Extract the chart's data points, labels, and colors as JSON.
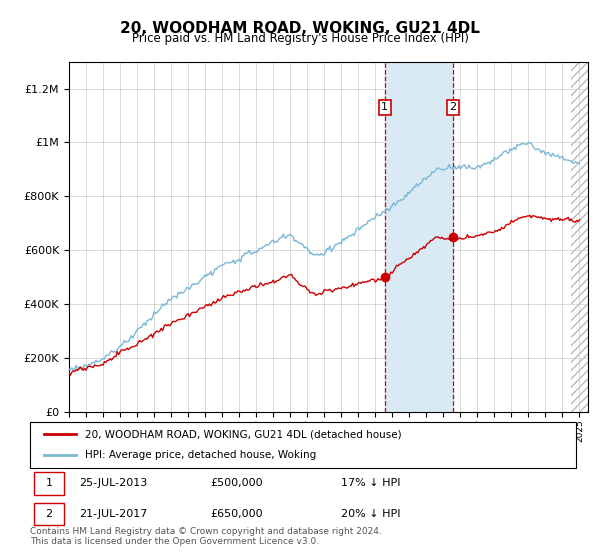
{
  "title": "20, WOODHAM ROAD, WOKING, GU21 4DL",
  "subtitle": "Price paid vs. HM Land Registry's House Price Index (HPI)",
  "ylabel_ticks": [
    "£0",
    "£200K",
    "£400K",
    "£600K",
    "£800K",
    "£1M",
    "£1.2M"
  ],
  "ytick_values": [
    0,
    200000,
    400000,
    600000,
    800000,
    1000000,
    1200000
  ],
  "ylim": [
    0,
    1300000
  ],
  "xlim_start": 1995.0,
  "xlim_end": 2025.5,
  "purchase1_date": 2013.56,
  "purchase1_price": 500000,
  "purchase2_date": 2017.56,
  "purchase2_price": 650000,
  "legend_line1": "20, WOODHAM ROAD, WOKING, GU21 4DL (detached house)",
  "legend_line2": "HPI: Average price, detached house, Woking",
  "annotation1_date": "25-JUL-2013",
  "annotation1_price": "£500,000",
  "annotation1_pct": "17% ↓ HPI",
  "annotation2_date": "21-JUL-2017",
  "annotation2_price": "£650,000",
  "annotation2_pct": "20% ↓ HPI",
  "footer": "Contains HM Land Registry data © Crown copyright and database right 2024.\nThis data is licensed under the Open Government Licence v3.0.",
  "hpi_color": "#7bb8d4",
  "price_color": "#cc0000",
  "shade_color": "#daeaf5",
  "marker_color": "#cc0000",
  "hatch_color": "#cccccc"
}
